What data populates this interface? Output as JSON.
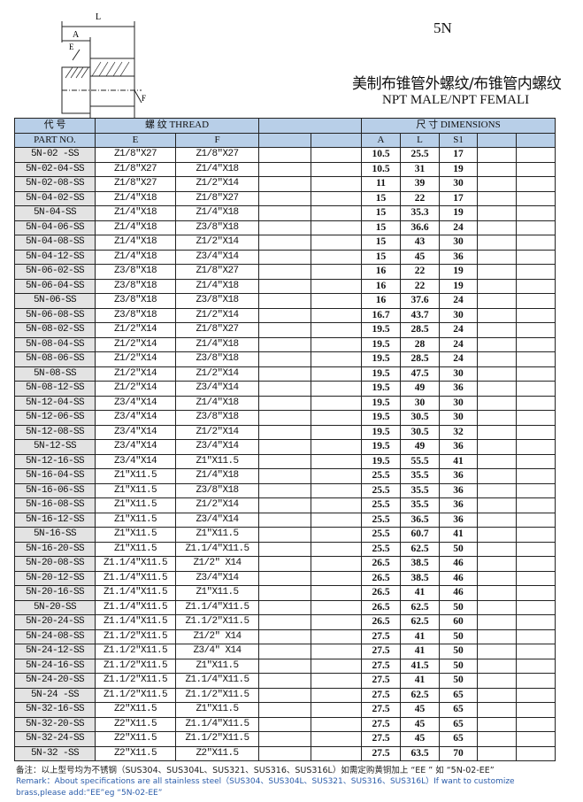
{
  "header": {
    "code": "5N",
    "title_cn": "美制布锥管外螺纹/布锥管内螺纹",
    "title_en": "NPT MALE/NPT FEMALI",
    "drawing_labels": {
      "L": "L",
      "A": "A",
      "E": "E",
      "F": "F",
      "S1": "S1"
    }
  },
  "table": {
    "header_row1": {
      "part": "代  号",
      "thread": "螺  纹    THREAD",
      "dimensions": "尺  寸        DIMENSIONS"
    },
    "header_row2": {
      "part": "PART  NO.",
      "e": "E",
      "f": "F",
      "a": "A",
      "l": "L",
      "s1": "S1"
    },
    "rows": [
      [
        "5N-02 -SS",
        "Z1/8\"X27",
        "Z1/8\"X27",
        "10.5",
        "25.5",
        "17"
      ],
      [
        "5N-02-04-SS",
        "Z1/8\"X27",
        "Z1/4\"X18",
        "10.5",
        "31",
        "19"
      ],
      [
        "5N-02-08-SS",
        "Z1/8\"X27",
        "Z1/2\"X14",
        "11",
        "39",
        "30"
      ],
      [
        "5N-04-02-SS",
        "Z1/4\"X18",
        "Z1/8\"X27",
        "15",
        "22",
        "17"
      ],
      [
        "5N-04-SS",
        "Z1/4\"X18",
        "Z1/4\"X18",
        "15",
        "35.3",
        "19"
      ],
      [
        "5N-04-06-SS",
        "Z1/4\"X18",
        "Z3/8\"X18",
        "15",
        "36.6",
        "24"
      ],
      [
        "5N-04-08-SS",
        "Z1/4\"X18",
        "Z1/2\"X14",
        "15",
        "43",
        "30"
      ],
      [
        "5N-04-12-SS",
        "Z1/4\"X18",
        "Z3/4\"X14",
        "15",
        "45",
        "36"
      ],
      [
        "5N-06-02-SS",
        "Z3/8\"X18",
        "Z1/8\"X27",
        "16",
        "22",
        "19"
      ],
      [
        "5N-06-04-SS",
        "Z3/8\"X18",
        "Z1/4\"X18",
        "16",
        "22",
        "19"
      ],
      [
        "5N-06-SS",
        "Z3/8\"X18",
        "Z3/8\"X18",
        "16",
        "37.6",
        "24"
      ],
      [
        "5N-06-08-SS",
        "Z3/8\"X18",
        "Z1/2\"X14",
        "16.7",
        "43.7",
        "30"
      ],
      [
        "5N-08-02-SS",
        "Z1/2\"X14",
        "Z1/8\"X27",
        "19.5",
        "28.5",
        "24"
      ],
      [
        "5N-08-04-SS",
        "Z1/2\"X14",
        "Z1/4\"X18",
        "19.5",
        "28",
        "24"
      ],
      [
        "5N-08-06-SS",
        "Z1/2\"X14",
        "Z3/8\"X18",
        "19.5",
        "28.5",
        "24"
      ],
      [
        "5N-08-SS",
        "Z1/2\"X14",
        "Z1/2\"X14",
        "19.5",
        "47.5",
        "30"
      ],
      [
        "5N-08-12-SS",
        "Z1/2\"X14",
        "Z3/4\"X14",
        "19.5",
        "49",
        "36"
      ],
      [
        "5N-12-04-SS",
        "Z3/4\"X14",
        "Z1/4\"X18",
        "19.5",
        "30",
        "30"
      ],
      [
        "5N-12-06-SS",
        "Z3/4\"X14",
        "Z3/8\"X18",
        "19.5",
        "30.5",
        "30"
      ],
      [
        "5N-12-08-SS",
        "Z3/4\"X14",
        "Z1/2\"X14",
        "19.5",
        "30.5",
        "32"
      ],
      [
        "5N-12-SS",
        "Z3/4\"X14",
        "Z3/4\"X14",
        "19.5",
        "49",
        "36"
      ],
      [
        "5N-12-16-SS",
        "Z3/4\"X14",
        "Z1\"X11.5",
        "19.5",
        "55.5",
        "41"
      ],
      [
        "5N-16-04-SS",
        "Z1\"X11.5",
        "Z1/4\"X18",
        "25.5",
        "35.5",
        "36"
      ],
      [
        "5N-16-06-SS",
        "Z1\"X11.5",
        "Z3/8\"X18",
        "25.5",
        "35.5",
        "36"
      ],
      [
        "5N-16-08-SS",
        "Z1\"X11.5",
        "Z1/2\"X14",
        "25.5",
        "35.5",
        "36"
      ],
      [
        "5N-16-12-SS",
        "Z1\"X11.5",
        "Z3/4\"X14",
        "25.5",
        "36.5",
        "36"
      ],
      [
        "5N-16-SS",
        "Z1\"X11.5",
        "Z1\"X11.5",
        "25.5",
        "60.7",
        "41"
      ],
      [
        "5N-16-20-SS",
        "Z1\"X11.5",
        "Z1.1/4\"X11.5",
        "25.5",
        "62.5",
        "50"
      ],
      [
        "5N-20-08-SS",
        "Z1.1/4\"X11.5",
        "Z1/2\" X14",
        "26.5",
        "38.5",
        "46"
      ],
      [
        "5N-20-12-SS",
        "Z1.1/4\"X11.5",
        "Z3/4\"X14",
        "26.5",
        "38.5",
        "46"
      ],
      [
        "5N-20-16-SS",
        "Z1.1/4\"X11.5",
        "Z1\"X11.5",
        "26.5",
        "41",
        "46"
      ],
      [
        "5N-20-SS",
        "Z1.1/4\"X11.5",
        "Z1.1/4\"X11.5",
        "26.5",
        "62.5",
        "50"
      ],
      [
        "5N-20-24-SS",
        "Z1.1/4\"X11.5",
        "Z1.1/2\"X11.5",
        "26.5",
        "62.5",
        "60"
      ],
      [
        "5N-24-08-SS",
        "Z1.1/2\"X11.5",
        "Z1/2\" X14",
        "27.5",
        "41",
        "50"
      ],
      [
        "5N-24-12-SS",
        "Z1.1/2\"X11.5",
        "Z3/4\" X14",
        "27.5",
        "41",
        "50"
      ],
      [
        "5N-24-16-SS",
        "Z1.1/2\"X11.5",
        "Z1\"X11.5",
        "27.5",
        "41.5",
        "50"
      ],
      [
        "5N-24-20-SS",
        "Z1.1/2\"X11.5",
        "Z1.1/4\"X11.5",
        "27.5",
        "41",
        "50"
      ],
      [
        "5N-24 -SS",
        "Z1.1/2\"X11.5",
        "Z1.1/2\"X11.5",
        "27.5",
        "62.5",
        "65"
      ],
      [
        "5N-32-16-SS",
        "Z2\"X11.5",
        "Z1\"X11.5",
        "27.5",
        "45",
        "65"
      ],
      [
        "5N-32-20-SS",
        "Z2\"X11.5",
        "Z1.1/4\"X11.5",
        "27.5",
        "45",
        "65"
      ],
      [
        "5N-32-24-SS",
        "Z2\"X11.5",
        "Z1.1/2\"X11.5",
        "27.5",
        "45",
        "65"
      ],
      [
        "5N-32 -SS",
        "Z2\"X11.5",
        "Z2\"X11.5",
        "27.5",
        "63.5",
        "70"
      ]
    ]
  },
  "note": {
    "cn": "备注：以上型号均为不锈钢（SUS304、SUS304L、SUS321、SUS316、SUS316L）如需定购黄铜加上 “EE ” 如 “5N-02-EE”",
    "en_line1": "Remark：About specifications are all stainless steel（SUS304、SUS304L、SUS321、SUS316、SUS316L）If want to customize",
    "en_line2": "brass,please add:“EE”eg “5N-02-EE”"
  },
  "colors": {
    "header_bg": "#b8cfe8",
    "part_no_bg": "#e3e3e3",
    "remark_en": "#2a5caa"
  }
}
